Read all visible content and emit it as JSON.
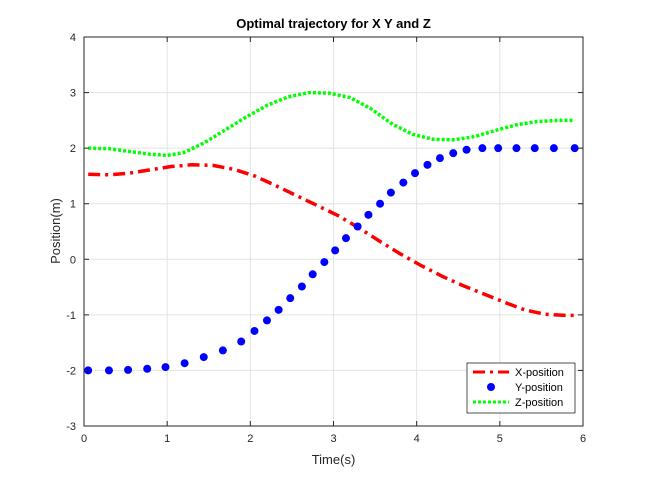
{
  "chart_data": {
    "type": "line",
    "title": "Optimal trajectory for X Y and Z",
    "xlabel": "Time(s)",
    "ylabel": "Position(m)",
    "xlim": [
      0,
      6
    ],
    "ylim": [
      -3,
      4
    ],
    "xticks": [
      0,
      1,
      2,
      3,
      4,
      5,
      6
    ],
    "yticks": [
      -3,
      -2,
      -1,
      0,
      1,
      2,
      3,
      4
    ],
    "grid": true,
    "legend_position": "bottom-right",
    "series": [
      {
        "name": "X-position",
        "style": "dash-dot",
        "color": "#ff0000",
        "x": [
          0.05,
          0.3,
          0.55,
          0.8,
          1.05,
          1.3,
          1.55,
          1.8,
          2.05,
          2.3,
          2.55,
          2.8,
          3.05,
          3.3,
          3.55,
          3.8,
          4.05,
          4.3,
          4.55,
          4.8,
          5.05,
          5.3,
          5.55,
          5.8,
          5.9
        ],
        "y": [
          1.53,
          1.52,
          1.55,
          1.61,
          1.67,
          1.7,
          1.69,
          1.62,
          1.5,
          1.33,
          1.15,
          0.97,
          0.79,
          0.57,
          0.33,
          0.1,
          -0.11,
          -0.3,
          -0.47,
          -0.62,
          -0.77,
          -0.91,
          -0.99,
          -1.01,
          -1.01
        ]
      },
      {
        "name": "Y-position",
        "style": "dots",
        "color": "#0000ff",
        "x": [
          0.05,
          0.3,
          0.53,
          0.76,
          0.98,
          1.21,
          1.44,
          1.67,
          1.89,
          2.05,
          2.2,
          2.34,
          2.48,
          2.62,
          2.75,
          2.89,
          3.02,
          3.15,
          3.29,
          3.42,
          3.56,
          3.69,
          3.84,
          3.98,
          4.13,
          4.28,
          4.44,
          4.6,
          4.79,
          4.98,
          5.2,
          5.42,
          5.65,
          5.9
        ],
        "y": [
          -2.0,
          -2.0,
          -1.99,
          -1.97,
          -1.94,
          -1.87,
          -1.76,
          -1.64,
          -1.48,
          -1.29,
          -1.1,
          -0.91,
          -0.7,
          -0.49,
          -0.27,
          -0.05,
          0.16,
          0.38,
          0.59,
          0.8,
          1.0,
          1.2,
          1.38,
          1.55,
          1.7,
          1.82,
          1.91,
          1.97,
          2.0,
          2.0,
          2.0,
          2.0,
          2.0,
          2.0
        ]
      },
      {
        "name": "Z-position",
        "style": "dotted",
        "color": "#00ff00",
        "x": [
          0.05,
          0.3,
          0.55,
          0.8,
          1.0,
          1.2,
          1.45,
          1.7,
          1.95,
          2.2,
          2.45,
          2.7,
          2.95,
          3.2,
          3.45,
          3.7,
          3.95,
          4.2,
          4.45,
          4.7,
          4.95,
          5.2,
          5.45,
          5.7,
          5.9
        ],
        "y": [
          2.0,
          1.99,
          1.94,
          1.89,
          1.87,
          1.92,
          2.1,
          2.33,
          2.56,
          2.77,
          2.92,
          3.0,
          2.99,
          2.91,
          2.71,
          2.44,
          2.25,
          2.16,
          2.15,
          2.21,
          2.32,
          2.42,
          2.48,
          2.5,
          2.5
        ]
      }
    ]
  }
}
